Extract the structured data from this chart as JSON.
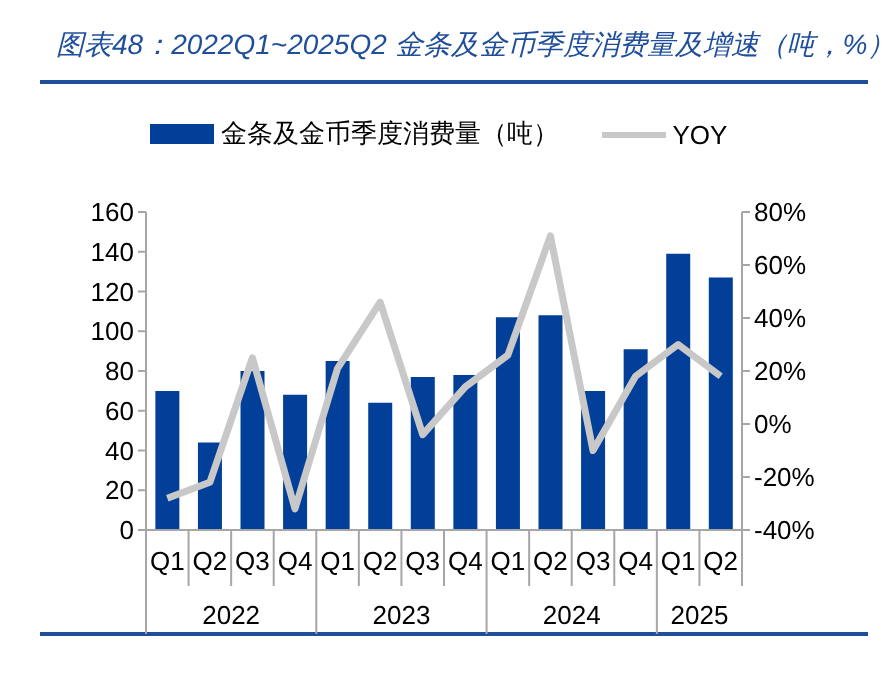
{
  "chart_data": {
    "type": "bar",
    "title": "图表48：2022Q1~2025Q2 金条及金币季度消费量及增速（吨，%）",
    "categories": [
      "Q1",
      "Q2",
      "Q3",
      "Q4",
      "Q1",
      "Q2",
      "Q3",
      "Q4",
      "Q1",
      "Q2",
      "Q3",
      "Q4",
      "Q1",
      "Q2"
    ],
    "annotations": [
      "2022",
      "2023",
      "2024",
      "2025"
    ],
    "series": [
      {
        "name": "金条及金币季度消费量（吨）",
        "color": "#023f98",
        "values": [
          70,
          44,
          80,
          68,
          85,
          64,
          77,
          78,
          107,
          108,
          70,
          91,
          139,
          127
        ]
      },
      {
        "name": "YOY",
        "type": "line",
        "axis": "y2",
        "color": "#c8c8c8",
        "values": [
          -28,
          -22,
          25,
          -32,
          21,
          46,
          -4,
          14,
          26,
          71,
          -10,
          18,
          30,
          18
        ]
      }
    ],
    "ylim": [
      0,
      160
    ],
    "yticks": [
      0,
      20,
      40,
      60,
      80,
      100,
      120,
      140,
      160
    ],
    "y2lim": [
      -40,
      80
    ],
    "y2ticks": [
      {
        "value": -40,
        "label": "-40%"
      },
      {
        "value": -20,
        "label": "-20%"
      },
      {
        "value": 0,
        "label": "0%"
      },
      {
        "value": 20,
        "label": "20%"
      },
      {
        "value": 40,
        "label": "40%"
      },
      {
        "value": 60,
        "label": "60%"
      },
      {
        "value": 80,
        "label": "80%"
      }
    ],
    "legend": "top",
    "grid": false,
    "marker": "none",
    "line_style": "solid"
  }
}
